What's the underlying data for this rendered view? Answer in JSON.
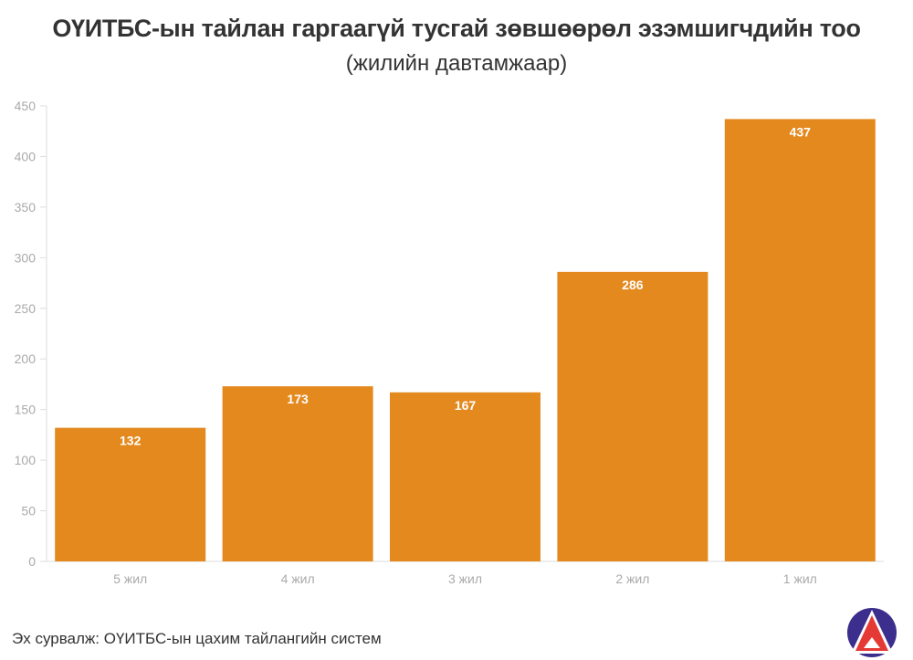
{
  "chart_data": {
    "type": "bar",
    "title": "ОҮИТБС-ын тайлан гаргаагүй тусгай зөвшөөрөл эзэмшигчдийн тоо",
    "subtitle": "(жилийн давтамжаар)",
    "categories": [
      "5 жил",
      "4 жил",
      "3 жил",
      "2 жил",
      "1 жил"
    ],
    "values": [
      132,
      173,
      167,
      286,
      437
    ],
    "ylim": [
      0,
      450
    ],
    "yticks": [
      0,
      50,
      100,
      150,
      200,
      250,
      300,
      350,
      400,
      450
    ],
    "grid": false,
    "bar_color": "#E3891E",
    "data_labels": true
  },
  "source": "Эх сурвалж: ОҮИТБС-ын цахим тайлангийн систем",
  "logo": {
    "colors": [
      "#3B2E8C",
      "#E53935"
    ]
  }
}
